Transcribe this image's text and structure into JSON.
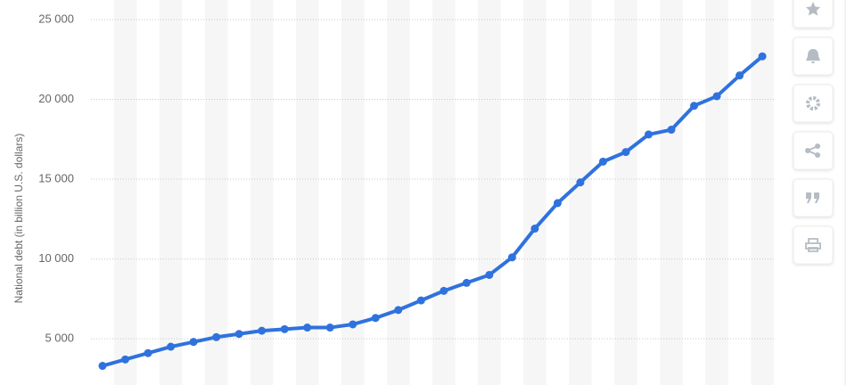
{
  "chart_data": {
    "type": "line",
    "y_label": "National debt (in billion U.S. dollars)",
    "categories": [
      null,
      null,
      null,
      null,
      null,
      null,
      null,
      null,
      null,
      null,
      null,
      null,
      null,
      null,
      null,
      null,
      null,
      null,
      null,
      null,
      null,
      null,
      null,
      null,
      null,
      null,
      null,
      null,
      null,
      null
    ],
    "series": [
      {
        "color": "#2f72de",
        "values": [
          3300,
          3700,
          4100,
          4500,
          4800,
          5100,
          5300,
          5500,
          5600,
          5700,
          5700,
          5900,
          6300,
          6800,
          7400,
          8000,
          8500,
          9000,
          10100,
          11900,
          13500,
          14800,
          16100,
          16700,
          17800,
          18100,
          19600,
          20200,
          21500,
          22700
        ]
      }
    ],
    "ylim": [
      2100,
      26230
    ],
    "yticks": [
      {
        "value": 5000,
        "label": "5 000"
      },
      {
        "value": 10000,
        "label": "10 000"
      },
      {
        "value": 15000,
        "label": "15 000"
      },
      {
        "value": 20000,
        "label": "20 000"
      },
      {
        "value": 25000,
        "label": "25 000"
      }
    ],
    "grid": true
  }
}
